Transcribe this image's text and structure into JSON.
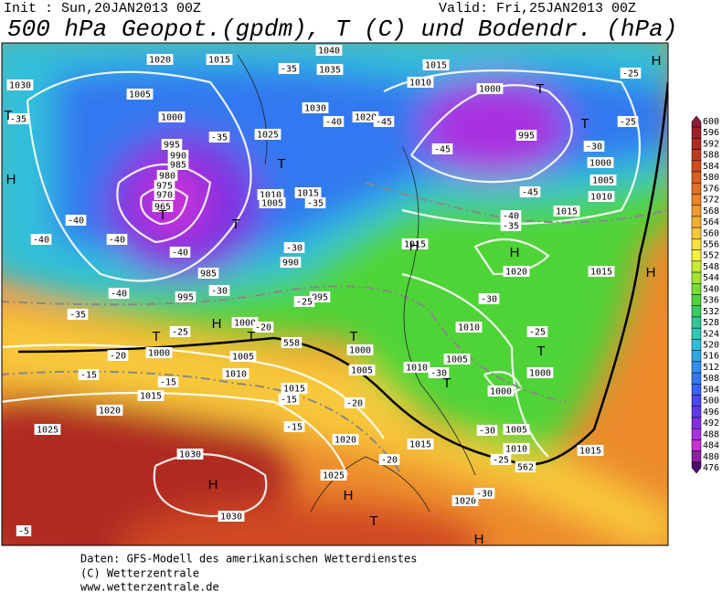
{
  "header": {
    "init": "Init : Sun,20JAN2013 00Z",
    "valid": "Valid: Fri,25JAN2013 00Z",
    "title": "500 hPa Geopot.(gpdm), T (C) und Bodendr. (hPa)"
  },
  "map": {
    "labels": [
      "1020",
      "1015",
      "1030",
      "1005",
      "1000",
      "995",
      "990",
      "985",
      "980",
      "975",
      "970",
      "965",
      "1025",
      "1010",
      "1005",
      "1015",
      "985",
      "995",
      "990",
      "995",
      "1000",
      "1000",
      "1005",
      "1010",
      "1015",
      "1020",
      "1025",
      "1030",
      "1030",
      "1025",
      "1020",
      "1015",
      "1000",
      "1005",
      "1035",
      "1040",
      "1030",
      "1020",
      "1015",
      "1010",
      "1000",
      "995",
      "1000",
      "1005",
      "1010",
      "1015",
      "1015",
      "1020",
      "1015",
      "1010",
      "1005",
      "1010",
      "1000",
      "1000",
      "1005",
      "1010",
      "1015",
      "1015",
      "1020",
      "-35",
      "-40",
      "-40",
      "-40",
      "-40",
      "-40",
      "-35",
      "-30",
      "-25",
      "-20",
      "-15",
      "-15",
      "-15",
      "-15",
      "-20",
      "-20",
      "-25",
      "-30",
      "-30",
      "-25",
      "-30",
      "-35",
      "-40",
      "-45",
      "-45",
      "-30",
      "-25",
      "-25",
      "-35",
      "-35",
      "-30",
      "-25",
      "-20",
      "-40",
      "-45",
      "-35",
      "-30",
      "-5",
      "558",
      "562"
    ],
    "markers": [
      "H",
      "H",
      "H",
      "H",
      "H",
      "H",
      "H",
      "H",
      "H",
      "T",
      "T",
      "T",
      "T",
      "T",
      "T",
      "T",
      "T",
      "T",
      "T",
      "T",
      "T",
      "T"
    ]
  },
  "colorbar": {
    "ticks": [
      600,
      596,
      592,
      588,
      584,
      580,
      576,
      572,
      568,
      564,
      560,
      556,
      552,
      548,
      544,
      540,
      536,
      532,
      528,
      524,
      520,
      516,
      512,
      508,
      504,
      500,
      496,
      492,
      488,
      484,
      480,
      476
    ],
    "colors": [
      "#8c1c3c",
      "#a01e2a",
      "#b02a24",
      "#c03a22",
      "#d04a20",
      "#dc5e20",
      "#e47024",
      "#ec8428",
      "#f09a2c",
      "#f4b034",
      "#f8c83a",
      "#fce044",
      "#f0f040",
      "#c8ec34",
      "#a0e430",
      "#78dc30",
      "#50d438",
      "#38cc60",
      "#30c890",
      "#30c8b8",
      "#30c0d8",
      "#30a8e8",
      "#3090f0",
      "#3078f0",
      "#3c60f0",
      "#4c48ec",
      "#6038e8",
      "#8030e0",
      "#a830e0",
      "#c830d8",
      "#9020a0",
      "#500870"
    ]
  },
  "footer": [
    "Daten: GFS-Modell des amerikanischen Wetterdienstes",
    "(C) Wetterzentrale",
    "www.wetterzentrale.de"
  ]
}
